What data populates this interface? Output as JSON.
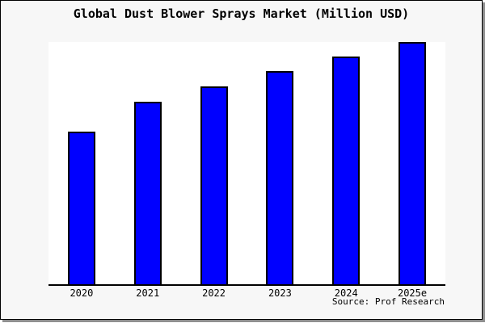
{
  "title": "Global Dust Blower Sprays Market (Million USD)",
  "source_caption": "Source: Prof Research",
  "colors": {
    "background": "#f7f7f7",
    "plot_background": "#ffffff",
    "bar_fill": "#0000ff",
    "bar_border": "#000000",
    "axis": "#000000",
    "frame_shadow": "#8f8f8f"
  },
  "chart_data": {
    "type": "bar",
    "title": "Global Dust Blower Sprays Market (Million USD)",
    "categories": [
      "2020",
      "2021",
      "2022",
      "2023",
      "2024",
      "2025e"
    ],
    "values": [
      63,
      75.3,
      81.7,
      88,
      94,
      100
    ],
    "values_note": "y-axis has no tick labels in the image; values are relative bar heights indexed to 2025e = 100",
    "xlabel": "",
    "ylabel": "",
    "ylim": [
      0,
      100
    ],
    "grid": false,
    "legend": false,
    "bar_color": "#0000ff",
    "annotations": [
      "Source: Prof Research"
    ]
  }
}
